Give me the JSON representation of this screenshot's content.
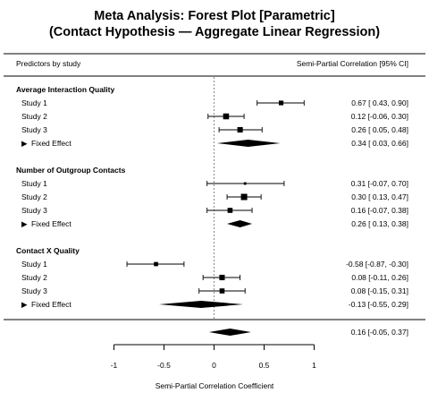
{
  "chart_data": {
    "type": "forest",
    "title": "Meta Analysis: Forest Plot [Parametric]",
    "subtitle": "(Contact Hypothesis — Aggregate Linear Regression)",
    "header_left": "Predictors by study",
    "header_right": "Semi-Partial Correlation [95% CI]",
    "xlabel": "Semi-Partial Correlation Coefficient",
    "xlim": [
      -1,
      1
    ],
    "x_ticks": [
      "-1",
      "-0.5",
      "0",
      "0.5",
      "1"
    ],
    "reference_line": 0,
    "groups": [
      {
        "name": "Average Interaction Quality",
        "studies": [
          {
            "label": "Study 1",
            "est": 0.67,
            "lo": 0.43,
            "hi": 0.9,
            "ci_text": "0.67 [ 0.43,  0.90]",
            "weight": 0.8
          },
          {
            "label": "Study 2",
            "est": 0.12,
            "lo": -0.06,
            "hi": 0.3,
            "ci_text": "0.12 [-0.06,  0.30]",
            "weight": 1.1
          },
          {
            "label": "Study 3",
            "est": 0.26,
            "lo": 0.05,
            "hi": 0.48,
            "ci_text": "0.26 [ 0.05,  0.48]",
            "weight": 1.0
          }
        ],
        "fixed": {
          "label": "Fixed Effect",
          "est": 0.34,
          "lo": 0.03,
          "hi": 0.66,
          "ci_text": "0.34 [ 0.03,  0.66]"
        }
      },
      {
        "name": "Number of Outgroup Contacts",
        "studies": [
          {
            "label": "Study 1",
            "est": 0.31,
            "lo": -0.07,
            "hi": 0.7,
            "ci_text": "0.31 [-0.07,  0.70]",
            "weight": 0.3
          },
          {
            "label": "Study 2",
            "est": 0.3,
            "lo": 0.13,
            "hi": 0.47,
            "ci_text": "0.30 [ 0.13,  0.47]",
            "weight": 1.2
          },
          {
            "label": "Study 3",
            "est": 0.16,
            "lo": -0.07,
            "hi": 0.38,
            "ci_text": "0.16 [-0.07,  0.38]",
            "weight": 0.9
          }
        ],
        "fixed": {
          "label": "Fixed Effect",
          "est": 0.26,
          "lo": 0.13,
          "hi": 0.38,
          "ci_text": "0.26 [ 0.13,  0.38]"
        }
      },
      {
        "name": "Contact X Quality",
        "studies": [
          {
            "label": "Study 1",
            "est": -0.58,
            "lo": -0.87,
            "hi": -0.3,
            "ci_text": "-0.58 [-0.87, -0.30]",
            "weight": 0.7
          },
          {
            "label": "Study 2",
            "est": 0.08,
            "lo": -0.11,
            "hi": 0.26,
            "ci_text": "0.08 [-0.11,  0.26]",
            "weight": 1.0
          },
          {
            "label": "Study 3",
            "est": 0.08,
            "lo": -0.15,
            "hi": 0.31,
            "ci_text": "0.08 [-0.15,  0.31]",
            "weight": 0.9
          }
        ],
        "fixed": {
          "label": "Fixed Effect",
          "est": -0.13,
          "lo": -0.55,
          "hi": 0.29,
          "ci_text": "-0.13 [-0.55,  0.29]"
        }
      }
    ],
    "overall": {
      "est": 0.16,
      "lo": -0.05,
      "hi": 0.37,
      "ci_text": "0.16 [-0.05,  0.37]"
    }
  }
}
